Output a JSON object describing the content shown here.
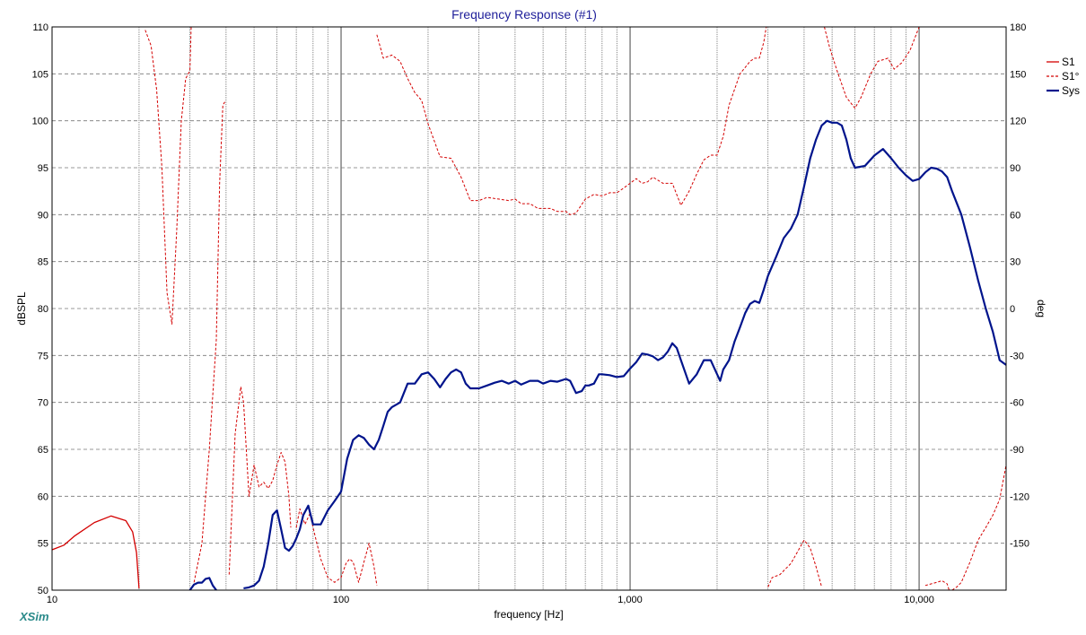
{
  "chart_data": {
    "type": "line",
    "title": "Frequency Response (#1)",
    "xlabel": "frequency [Hz]",
    "ylabel": "dBSPL",
    "y2label": "deg",
    "xscale": "log",
    "xlim": [
      10,
      20000
    ],
    "ylim": [
      50,
      110
    ],
    "y2lim": [
      -180,
      180
    ],
    "x_tick_labels": [
      {
        "value": 10,
        "label": "10"
      },
      {
        "value": 100,
        "label": "100"
      },
      {
        "value": 1000,
        "label": "1,000"
      },
      {
        "value": 10000,
        "label": "10,000"
      }
    ],
    "y_ticks": [
      50,
      55,
      60,
      65,
      70,
      75,
      80,
      85,
      90,
      95,
      100,
      105,
      110
    ],
    "y2_ticks": [
      180,
      150,
      120,
      90,
      60,
      30,
      0,
      -30,
      -60,
      -90,
      -120,
      -150
    ],
    "grid": true,
    "legend_position": "right",
    "brand": "XSim",
    "series": [
      {
        "name": "S1",
        "axis": "left",
        "color": "#d40000",
        "style": "solid",
        "x": [
          10,
          11,
          12,
          14,
          16,
          18,
          19,
          19.6,
          20
        ],
        "y": [
          54.3,
          54.8,
          55.8,
          57.2,
          57.9,
          57.4,
          56.2,
          54.0,
          50.2
        ]
      },
      {
        "name": "S1°",
        "axis": "right",
        "color": "#d40000",
        "style": "dashed",
        "segments": [
          {
            "x": [
              21,
              22,
              23,
              24,
              25,
              26,
              27,
              28,
              29,
              30,
              30.3
            ],
            "y": [
              178,
              168,
              140,
              90,
              10,
              -10,
              50,
              120,
              147,
              152,
              180
            ]
          },
          {
            "x": [
              31,
              33,
              35,
              37,
              38,
              39,
              39.6
            ],
            "y": [
              -175,
              -150,
              -90,
              -20,
              80,
              130,
              132
            ]
          },
          {
            "x": [
              41,
              43,
              45,
              46,
              48,
              50,
              52,
              54,
              56,
              58,
              60,
              62,
              64,
              66,
              67
            ],
            "y": [
              -170,
              -80,
              -50,
              -60,
              -120,
              -100,
              -114,
              -111,
              -115,
              -110,
              -100,
              -92,
              -98,
              -120,
              -140
            ]
          },
          {
            "x": [
              70,
              72,
              75,
              78,
              80,
              85,
              90,
              95,
              100,
              104,
              107,
              110,
              115,
              120,
              125,
              130,
              133
            ],
            "y": [
              -140,
              -128,
              -138,
              -131,
              -140,
              -160,
              -172,
              -175,
              -172,
              -163,
              -160,
              -162,
              -175,
              -162,
              -150,
              -165,
              -177
            ]
          },
          {
            "x": [
              133,
              140,
              150,
              160,
              170,
              180,
              190,
              200,
              220,
              240,
              260,
              280,
              300,
              320,
              350,
              380,
              400,
              420,
              450,
              480,
              500,
              530,
              560,
              600,
              620,
              650,
              700,
              750,
              800,
              850,
              900,
              950,
              1000,
              1050,
              1100,
              1150,
              1200,
              1300,
              1400,
              1500,
              1600,
              1700,
              1800,
              1900,
              2000,
              2100,
              2200,
              2400,
              2600,
              2700,
              2800,
              2900,
              2960
            ],
            "y": [
              175,
              160,
              162,
              158,
              147,
              138,
              133,
              118,
              97,
              96,
              84,
              69,
              69,
              71,
              70,
              69,
              70,
              67,
              67,
              64,
              64,
              64,
              62,
              62,
              60,
              61,
              70,
              73,
              72,
              74,
              74,
              77,
              80,
              83,
              80,
              81,
              84,
              80,
              80,
              66,
              75,
              86,
              95,
              98,
              98,
              110,
              130,
              150,
              158,
              160,
              160,
              170,
              180
            ]
          },
          {
            "x": [
              3000,
              3100,
              3300,
              3600,
              4000,
              4200,
              4400,
              4600
            ],
            "y": [
              -178,
              -172,
              -170,
              -163,
              -148,
              -153,
              -165,
              -178
            ]
          },
          {
            "x": [
              4700,
              4900,
              5200,
              5600,
              6000,
              6300,
              6800,
              7200,
              7800,
              8200,
              8700,
              9300,
              10000
            ],
            "y": [
              180,
              167,
              152,
              135,
              128,
              135,
              150,
              158,
              160,
              153,
              157,
              165,
              180
            ]
          },
          {
            "x": [
              10500,
              11000,
              11500,
              12000,
              12500,
              12700
            ],
            "y": [
              -177,
              -176,
              -175,
              -174,
              -176,
              -180
            ]
          },
          {
            "x": [
              13000,
              13500,
              14000,
              15000,
              16000,
              17000,
              18000,
              19000,
              20000
            ],
            "y": [
              -180,
              -178,
              -175,
              -162,
              -148,
              -140,
              -132,
              -122,
              -100
            ]
          }
        ]
      },
      {
        "name": "Sys",
        "axis": "left",
        "color": "#00148c",
        "style": "solid",
        "x": [
          30,
          31,
          32,
          33,
          34,
          35,
          36,
          37
        ],
        "y": [
          50,
          50.6,
          50.8,
          50.8,
          51.2,
          51.3,
          50.5,
          50
        ],
        "continuation": {
          "x": [
            46,
            48,
            50,
            52,
            54,
            56,
            58,
            60,
            62,
            64,
            66,
            68,
            70,
            72,
            74,
            77,
            80,
            85,
            90,
            95,
            100,
            105,
            110,
            115,
            120,
            125,
            130,
            135,
            140,
            145,
            150,
            160,
            170,
            180,
            190,
            200,
            210,
            220,
            230,
            240,
            250,
            260,
            270,
            280,
            300,
            320,
            340,
            360,
            380,
            400,
            420,
            450,
            480,
            500,
            530,
            560,
            600,
            620,
            650,
            680,
            700,
            720,
            750,
            780,
            800,
            850,
            900,
            950,
            1000,
            1050,
            1100,
            1150,
            1200,
            1250,
            1300,
            1350,
            1400,
            1450,
            1500,
            1600,
            1700,
            1800,
            1900,
            2000,
            2050,
            2100,
            2200,
            2300,
            2400,
            2500,
            2600,
            2700,
            2800,
            2900,
            3000,
            3200,
            3400,
            3600,
            3800,
            4000,
            4200,
            4400,
            4600,
            4800,
            5000,
            5200,
            5400,
            5600,
            5800,
            6000,
            6500,
            7000,
            7500,
            8000,
            8500,
            9000,
            9500,
            10000,
            10500,
            11000,
            11500,
            12000,
            12500,
            13000,
            14000,
            15000,
            16000,
            17000,
            18000,
            19000,
            20000
          ],
          "y": [
            50.2,
            50.3,
            50.5,
            51.0,
            52.5,
            55.0,
            58.0,
            58.5,
            56.5,
            54.5,
            54.2,
            54.7,
            55.5,
            56.5,
            58.0,
            59.0,
            57.0,
            57.0,
            58.5,
            59.5,
            60.5,
            64.0,
            66.0,
            66.5,
            66.2,
            65.5,
            65.0,
            66.0,
            67.5,
            69.0,
            69.5,
            70.0,
            72.0,
            72.0,
            73.0,
            73.2,
            72.5,
            71.6,
            72.5,
            73.2,
            73.5,
            73.2,
            72.0,
            71.5,
            71.5,
            71.8,
            72.1,
            72.3,
            72.0,
            72.3,
            71.9,
            72.3,
            72.3,
            72.0,
            72.3,
            72.2,
            72.5,
            72.3,
            71.0,
            71.2,
            71.8,
            71.8,
            72.0,
            73.0,
            73.0,
            72.9,
            72.7,
            72.8,
            73.6,
            74.3,
            75.2,
            75.1,
            74.9,
            74.5,
            74.8,
            75.4,
            76.3,
            75.8,
            74.5,
            72.0,
            73.0,
            74.5,
            74.5,
            73.0,
            72.3,
            73.5,
            74.5,
            76.5,
            78.0,
            79.5,
            80.5,
            80.8,
            80.6,
            82.0,
            83.5,
            85.5,
            87.5,
            88.5,
            90.0,
            93.0,
            96.0,
            98.0,
            99.5,
            100.0,
            99.8,
            99.8,
            99.5,
            98.0,
            96.0,
            95.0,
            95.2,
            96.3,
            97.0,
            96.0,
            95.0,
            94.2,
            93.6,
            93.8,
            94.5,
            95.0,
            94.9,
            94.6,
            94.0,
            92.5,
            90.0,
            86.5,
            83.0,
            80.0,
            77.5,
            74.5,
            74.0
          ]
        }
      }
    ]
  }
}
